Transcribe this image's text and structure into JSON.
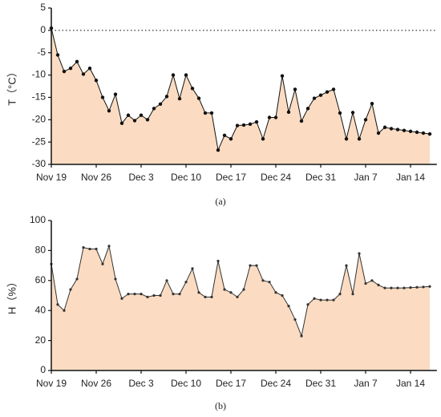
{
  "chart_data": [
    {
      "type": "line",
      "ylabel": "T（°C）",
      "caption": "(a)",
      "categories": [
        "Nov 19",
        null,
        null,
        null,
        null,
        null,
        null,
        "Nov 26",
        null,
        null,
        null,
        null,
        null,
        null,
        "Dec 3",
        null,
        null,
        null,
        null,
        null,
        null,
        "Dec 10",
        null,
        null,
        null,
        null,
        null,
        null,
        "Dec 17",
        null,
        null,
        null,
        null,
        null,
        null,
        "Dec 24",
        null,
        null,
        null,
        null,
        null,
        null,
        "Dec 31",
        null,
        null,
        null,
        null,
        null,
        null,
        "Jan 7",
        null,
        null,
        null,
        null,
        null,
        null,
        "Jan 14",
        null,
        null,
        null
      ],
      "values": [
        0.5,
        -5.5,
        -9.2,
        -8.5,
        -7,
        -9.8,
        -8.5,
        -11.2,
        -15,
        -18,
        -14.3,
        -20.8,
        -19,
        -20.2,
        -19,
        -20,
        -17.5,
        -16.5,
        -14.8,
        -10,
        -15.3,
        -10,
        -13,
        -15.2,
        -18.5,
        -18.5,
        -26.8,
        -23.5,
        -24.3,
        -21.3,
        -21.2,
        -21,
        -20.5,
        -24.3,
        -19.5,
        -19.5,
        -10.2,
        -18.3,
        -13.2,
        -20.3,
        -17.5,
        -15.2,
        -14.5,
        -13.8,
        -13.2,
        -18.5,
        -24.3,
        -18.4,
        -24.3,
        -20,
        -16.4,
        -23,
        -21.7,
        -22,
        -22.2,
        -22.4,
        -22.6,
        -22.8,
        -23,
        -23.2
      ],
      "color": "#111111",
      "fill": "#fbdcc2",
      "markers": true,
      "hline": 0,
      "ylim": [
        -30,
        5
      ],
      "yticks": [
        -30,
        -25,
        -20,
        -15,
        -10,
        -5,
        0,
        5
      ]
    },
    {
      "type": "line",
      "ylabel": "H（%）",
      "caption": "(b)",
      "categories": [
        "Nov 19",
        null,
        null,
        null,
        null,
        null,
        null,
        "Nov 26",
        null,
        null,
        null,
        null,
        null,
        null,
        "Dec 3",
        null,
        null,
        null,
        null,
        null,
        null,
        "Dec 10",
        null,
        null,
        null,
        null,
        null,
        null,
        "Dec 17",
        null,
        null,
        null,
        null,
        null,
        null,
        "Dec 24",
        null,
        null,
        null,
        null,
        null,
        null,
        "Dec 31",
        null,
        null,
        null,
        null,
        null,
        null,
        "Jan 7",
        null,
        null,
        null,
        null,
        null,
        null,
        "Jan 14",
        null,
        null,
        null
      ],
      "values": [
        71,
        44,
        40,
        54,
        61,
        82,
        81,
        81,
        71,
        83,
        61,
        48,
        51,
        51,
        51,
        49,
        50,
        50,
        60,
        51,
        51,
        59,
        68,
        52,
        49,
        49,
        73,
        54,
        52,
        49,
        54,
        70,
        70,
        60,
        59,
        52,
        50,
        43,
        34,
        23,
        44,
        48,
        47,
        47,
        47,
        51,
        70,
        51,
        78,
        58,
        60,
        57,
        55,
        55,
        55,
        55,
        55.3,
        55.5,
        55.7,
        56
      ],
      "color": "#333333",
      "fill": "#fbdcc2",
      "markers": true,
      "ylim": [
        0,
        100
      ],
      "yticks": [
        0,
        20,
        40,
        60,
        80,
        100
      ]
    }
  ]
}
